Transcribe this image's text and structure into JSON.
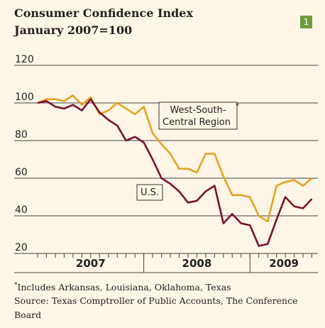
{
  "chart_data": {
    "type": "line",
    "title": "Consumer Confidence Index",
    "subtitle": "January 2007=100",
    "badge": "1",
    "x": [
      2007.0,
      2007.083,
      2007.167,
      2007.25,
      2007.333,
      2007.417,
      2007.5,
      2007.583,
      2007.667,
      2007.75,
      2007.833,
      2007.917,
      2008.0,
      2008.083,
      2008.167,
      2008.25,
      2008.333,
      2008.417,
      2008.5,
      2008.583,
      2008.667,
      2008.75,
      2008.833,
      2008.917,
      2009.0,
      2009.083,
      2009.167,
      2009.25,
      2009.333,
      2009.417,
      2009.5,
      2009.583
    ],
    "series": [
      {
        "name": "West-South-Central Region",
        "color": "#e3a323",
        "values": [
          100,
          102,
          102,
          101,
          104,
          99,
          103,
          94,
          96,
          100,
          97,
          94,
          98,
          84,
          78,
          73,
          65,
          65,
          63,
          73,
          73,
          61,
          51,
          51,
          50,
          40,
          37,
          56,
          58,
          59,
          56,
          60
        ]
      },
      {
        "name": "U.S.",
        "color": "#7b1131",
        "values": [
          100,
          101,
          98,
          97,
          99,
          96,
          102,
          95,
          91,
          88,
          80,
          82,
          79,
          70,
          60,
          57,
          53,
          47,
          48,
          53,
          56,
          36,
          41,
          36,
          35,
          24,
          25,
          38,
          50,
          45,
          44,
          49
        ]
      }
    ],
    "annotation_marker": "*",
    "xlim": [
      2006.98,
      2009.64
    ],
    "xticks": [
      2007,
      2008,
      2009
    ],
    "ylim": [
      20,
      120
    ],
    "yticks": [
      20,
      40,
      60,
      80,
      100,
      120
    ],
    "grid": true,
    "footnote_marker": "*",
    "footnote": "Includes  Arkansas, Louisiana, Oklahoma, Texas",
    "source": "Source: Texas Comptroller of Public Accounts, The Conference Board"
  }
}
